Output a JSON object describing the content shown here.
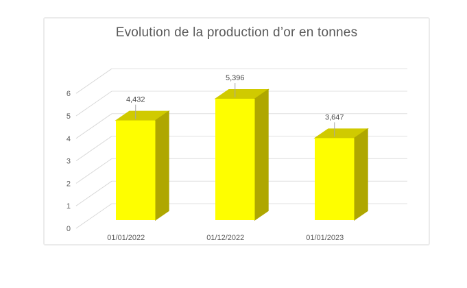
{
  "chart_data": {
    "type": "bar",
    "variant": "3d-column",
    "title": "Evolution de la production d’or en tonnes",
    "categories": [
      "01/01/2022",
      "01/12/2022",
      "01/01/2023"
    ],
    "values": [
      4.432,
      5.396,
      3.647
    ],
    "data_labels": [
      "4,432",
      "5,396",
      "3,647"
    ],
    "xlabel": "",
    "ylabel": "",
    "ylim": [
      0,
      6
    ],
    "yticks": [
      0,
      1,
      2,
      3,
      4,
      5,
      6
    ],
    "grid": true,
    "legend": "none",
    "colors": {
      "bar_front": "#FEFE00",
      "bar_top": "#D0CA00",
      "bar_side": "#AFA700",
      "gridline_back_wall": "#E0E0E0",
      "gridline_side_wall": "#D8D8D8",
      "axis_text": "#595959",
      "data_label_text": "#4A4A4A",
      "leader_line": "#A6A6A6",
      "panel_border": "#EBEBEB",
      "background": "#FFFFFF"
    }
  }
}
